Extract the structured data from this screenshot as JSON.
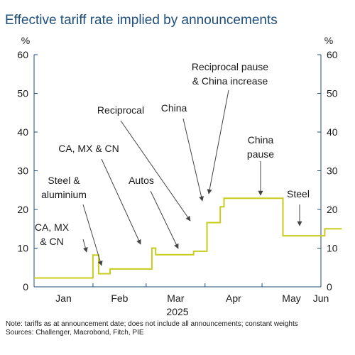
{
  "title": "Effective tariff rate implied by announcements",
  "notes": [
    "Note: tariffs as at announcement date; does not include all announcements; constant weights",
    "Sources: Challenger, Macrobond, Fitch, PIE"
  ],
  "colors": {
    "line": "#c8cc1e",
    "grid": "#d9d9d9",
    "axis": "#1f4e79",
    "title": "#1f4e79",
    "arrow": "#444444"
  },
  "chart_data": {
    "type": "line",
    "title": "Effective tariff rate implied by announcements",
    "ylabel_left": "%",
    "ylabel_right": "%",
    "ylim": [
      0,
      60
    ],
    "yticks": [
      0,
      10,
      20,
      30,
      40,
      50,
      60
    ],
    "xlim": [
      "2025-01-01",
      "2025-06-01"
    ],
    "xlabels": [
      "Jan",
      "Feb",
      "Mar",
      "Apr",
      "May",
      "Jun"
    ],
    "xlabel_year": "2025",
    "grid": false,
    "series": [
      {
        "name": "",
        "points": [
          [
            "2025-01-01",
            2.3
          ],
          [
            "2025-02-01",
            2.3
          ],
          [
            "2025-02-01",
            8.2
          ],
          [
            "2025-02-04",
            8.2
          ],
          [
            "2025-02-04",
            3.4
          ],
          [
            "2025-02-10",
            3.4
          ],
          [
            "2025-02-10",
            4.6
          ],
          [
            "2025-03-04",
            4.6
          ],
          [
            "2025-03-04",
            10.0
          ],
          [
            "2025-03-06",
            10.0
          ],
          [
            "2025-03-06",
            8.3
          ],
          [
            "2025-03-26",
            8.3
          ],
          [
            "2025-03-26",
            9.2
          ],
          [
            "2025-04-02",
            9.2
          ],
          [
            "2025-04-02",
            16.6
          ],
          [
            "2025-04-09",
            16.6
          ],
          [
            "2025-04-09",
            20.7
          ],
          [
            "2025-04-11",
            20.7
          ],
          [
            "2025-04-11",
            22.9
          ],
          [
            "2025-05-12",
            22.9
          ],
          [
            "2025-05-12",
            13.2
          ],
          [
            "2025-06-03",
            13.2
          ],
          [
            "2025-06-03",
            15.0
          ],
          [
            "2025-06-12",
            15.0
          ]
        ]
      }
    ],
    "annotations": [
      {
        "lines": [
          "CA, MX",
          "& CN"
        ],
        "x": "2025-02-01",
        "y": 8.2
      },
      {
        "lines": [
          "Steel &",
          "aluminium"
        ],
        "x": "2025-02-10",
        "y": 4.6
      },
      {
        "lines": [
          "CA, MX & CN"
        ],
        "x": "2025-03-04",
        "y": 10.0
      },
      {
        "lines": [
          "Autos"
        ],
        "x": "2025-03-26",
        "y": 9.2
      },
      {
        "lines": [
          "Reciprocal"
        ],
        "x": "2025-04-02",
        "y": 16.6
      },
      {
        "lines": [
          "China"
        ],
        "x": "2025-04-09",
        "y": 20.7
      },
      {
        "lines": [
          "Reciprocal pause",
          "& China increase"
        ],
        "x": "2025-04-11",
        "y": 22.9
      },
      {
        "lines": [
          "China",
          "pause"
        ],
        "x": "2025-05-12",
        "y": 22.9
      },
      {
        "lines": [
          "Steel"
        ],
        "x": "2025-06-03",
        "y": 15.0
      }
    ]
  }
}
